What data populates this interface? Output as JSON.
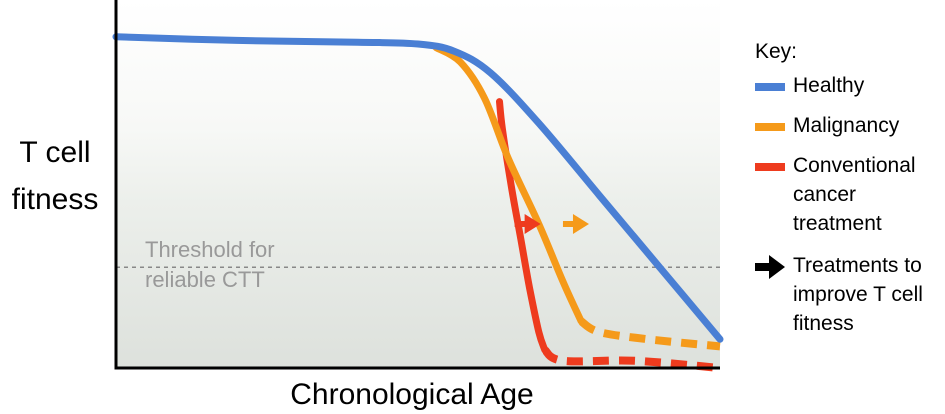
{
  "chart_data": {
    "type": "line",
    "xlabel": "Chronological Age",
    "ylabel_lines": [
      "T cell",
      "fitness"
    ],
    "threshold": {
      "value": 0.28,
      "label_lines": [
        "Threshold for",
        "reliable CTT"
      ]
    },
    "xlim": [
      0,
      100
    ],
    "ylim": [
      0,
      1
    ],
    "series": [
      {
        "name": "Healthy",
        "color": "#4a7fd4",
        "solid": [
          [
            0,
            0.92
          ],
          [
            20,
            0.91
          ],
          [
            40,
            0.905
          ],
          [
            50,
            0.9
          ],
          [
            56,
            0.88
          ],
          [
            62,
            0.82
          ],
          [
            70,
            0.68
          ],
          [
            80,
            0.48
          ],
          [
            90,
            0.28
          ],
          [
            100,
            0.08
          ]
        ]
      },
      {
        "name": "Malignancy",
        "color": "#f59a1a",
        "solid": [
          [
            53,
            0.89
          ],
          [
            57,
            0.85
          ],
          [
            61,
            0.75
          ],
          [
            65,
            0.58
          ],
          [
            70,
            0.4
          ],
          [
            74,
            0.24
          ],
          [
            77,
            0.13
          ]
        ],
        "dashed": [
          [
            77,
            0.13
          ],
          [
            80,
            0.1
          ],
          [
            88,
            0.08
          ],
          [
            100,
            0.06
          ]
        ]
      },
      {
        "name": "Conventional cancer treatment",
        "color": "#ee3b1e",
        "solid": [
          [
            63.5,
            0.74
          ],
          [
            64,
            0.66
          ],
          [
            65.5,
            0.5
          ],
          [
            67,
            0.36
          ],
          [
            68.5,
            0.22
          ],
          [
            70,
            0.1
          ],
          [
            71,
            0.05
          ]
        ],
        "dashed": [
          [
            71,
            0.05
          ],
          [
            74,
            0.02
          ],
          [
            86,
            0.02
          ],
          [
            100,
            0.0
          ]
        ]
      }
    ],
    "arrows": [
      {
        "color": "#ee3b1e",
        "x": 66,
        "y": 0.4
      },
      {
        "color": "#f59a1a",
        "x": 74,
        "y": 0.4
      }
    ],
    "key": {
      "title": "Key:",
      "entries": [
        {
          "label_lines": [
            "Healthy"
          ],
          "color": "#4a7fd4",
          "kind": "line"
        },
        {
          "label_lines": [
            "Malignancy"
          ],
          "color": "#f59a1a",
          "kind": "line"
        },
        {
          "label_lines": [
            "Conventional",
            "cancer",
            "treatment"
          ],
          "color": "#ee3b1e",
          "kind": "line"
        },
        {
          "label_lines": [
            "Treatments to",
            "improve T cell",
            "fitness"
          ],
          "color": "#000000",
          "kind": "arrow"
        }
      ]
    }
  }
}
